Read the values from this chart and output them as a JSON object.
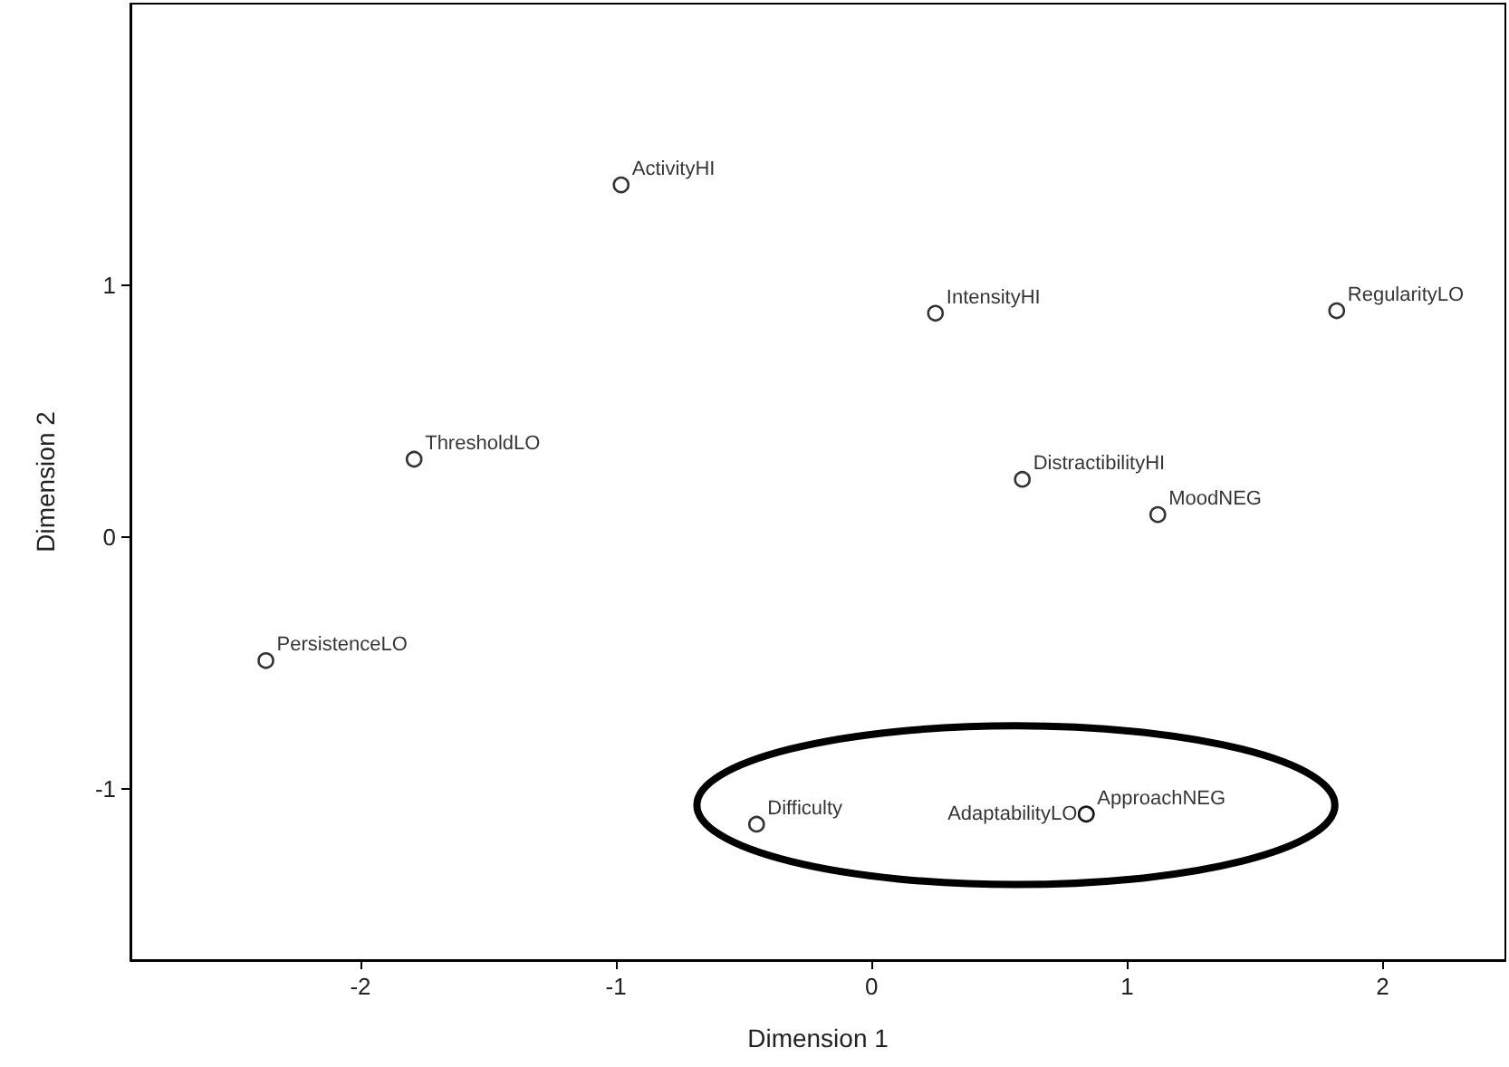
{
  "chart_data": {
    "type": "scatter",
    "xlabel": "Dimension 1",
    "ylabel": "Dimension 2",
    "x": [
      -0.98,
      0.25,
      1.82,
      -1.79,
      0.59,
      1.12,
      -2.37,
      -0.45,
      0.84,
      0.84
    ],
    "values": [
      1.4,
      0.89,
      0.9,
      0.31,
      0.23,
      0.09,
      -0.49,
      -1.14,
      -1.1,
      -1.1
    ],
    "color": "#000000",
    "marker": "circle",
    "grid": false,
    "xlim": [
      -2.9,
      2.48
    ],
    "xticks": [
      -2,
      -1,
      0,
      1,
      2
    ],
    "ylim": [
      -1.68,
      2.12
    ],
    "yticks": [
      -1,
      0,
      1
    ],
    "annotations": [
      {
        "text": "ActivityHI",
        "x": -0.98,
        "y": 1.4
      },
      {
        "text": "IntensityHI",
        "x": 0.25,
        "y": 0.89
      },
      {
        "text": "RegularityLO",
        "x": 1.82,
        "y": 0.9
      },
      {
        "text": "ThresholdLO",
        "x": -1.79,
        "y": 0.31
      },
      {
        "text": "DistractibilityHI",
        "x": 0.59,
        "y": 0.23
      },
      {
        "text": "MoodNEG",
        "x": 1.12,
        "y": 0.09
      },
      {
        "text": "PersistenceLO",
        "x": -2.37,
        "y": -0.49
      },
      {
        "text": "Difficulty",
        "x": -0.45,
        "y": -1.14
      },
      {
        "text": "AdaptabilityLO",
        "x": 0.84,
        "y": -1.1
      },
      {
        "text": "ApproachNEG",
        "x": 0.84,
        "y": -1.1
      }
    ]
  }
}
